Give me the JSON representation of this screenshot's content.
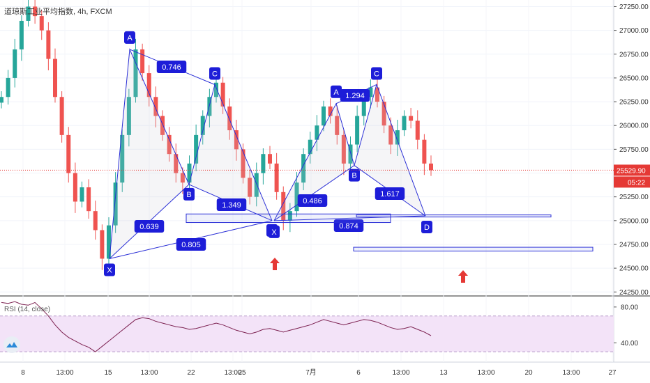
{
  "chart_data": {
    "type": "candlestick",
    "title": "道琼斯工业平均指数, 4h, FXCM",
    "symbol": "道琼斯工业平均指数",
    "interval": "4h",
    "source": "FXCM",
    "price_axis_ticks": [
      27250,
      27000,
      26750,
      26500,
      26250,
      26000,
      25750,
      25500,
      25250,
      25000,
      24750,
      24500,
      24250
    ],
    "price_axis_tick_labels": [
      "27250.00",
      "27000.00",
      "26750.00",
      "26500.00",
      "26250.00",
      "26000.00",
      "25750.00",
      "25500.00",
      "25250.00",
      "25000.00",
      "24750.00",
      "24500.00",
      "24250.00"
    ],
    "ylim": [
      24230,
      27290
    ],
    "last_price": 25529.9,
    "last_price_label": "25529.90",
    "countdown_label": "05:22",
    "time_axis_labels": [
      "8",
      "13:00",
      "15",
      "13:00",
      "22",
      "13:00",
      "25",
      "7月",
      "6",
      "13:00",
      "13",
      "13:00",
      "20",
      "13:00",
      "27"
    ],
    "ohlc_close_path": [
      [
        0,
        26300
      ],
      [
        1,
        26500
      ],
      [
        2,
        26800
      ],
      [
        3,
        27100
      ],
      [
        4,
        27250
      ],
      [
        5,
        27150
      ],
      [
        6,
        27000
      ],
      [
        7,
        26700
      ],
      [
        8,
        26300
      ],
      [
        9,
        25900
      ],
      [
        10,
        25500
      ],
      [
        11,
        25200
      ],
      [
        12,
        25350
      ],
      [
        13,
        25100
      ],
      [
        14,
        24900
      ],
      [
        15,
        24600
      ],
      [
        16,
        24950
      ],
      [
        17,
        25400
      ],
      [
        18,
        25900
      ],
      [
        19,
        26300
      ],
      [
        20,
        26800
      ],
      [
        21,
        26550
      ],
      [
        22,
        26300
      ],
      [
        23,
        26100
      ],
      [
        24,
        25900
      ],
      [
        25,
        25700
      ],
      [
        26,
        25500
      ],
      [
        27,
        25400
      ],
      [
        28,
        25600
      ],
      [
        29,
        25900
      ],
      [
        30,
        26100
      ],
      [
        31,
        26300
      ],
      [
        32,
        26450
      ],
      [
        33,
        26200
      ],
      [
        34,
        25950
      ],
      [
        35,
        25750
      ],
      [
        36,
        25450
      ],
      [
        37,
        25250
      ],
      [
        38,
        25500
      ],
      [
        39,
        25700
      ],
      [
        40,
        25600
      ],
      [
        41,
        25300
      ],
      [
        42,
        25000
      ],
      [
        43,
        25100
      ],
      [
        44,
        25400
      ],
      [
        45,
        25700
      ],
      [
        46,
        25850
      ],
      [
        47,
        26000
      ],
      [
        48,
        26200
      ],
      [
        49,
        26100
      ],
      [
        50,
        25900
      ],
      [
        51,
        25600
      ],
      [
        52,
        25800
      ],
      [
        53,
        26100
      ],
      [
        54,
        26300
      ],
      [
        55,
        26400
      ],
      [
        56,
        26250
      ],
      [
        57,
        26000
      ],
      [
        58,
        25800
      ],
      [
        59,
        25950
      ],
      [
        60,
        26100
      ],
      [
        61,
        26050
      ],
      [
        62,
        25850
      ],
      [
        63,
        25600
      ],
      [
        64,
        25530
      ]
    ],
    "patterns": [
      {
        "name": "pattern-1",
        "points": {
          "X": 24600,
          "A": 26800,
          "B": 25380,
          "C": 26430,
          "D": 25000
        },
        "ratios": [
          {
            "label": "0.746",
            "between": "XA-AB"
          },
          {
            "label": "0.639",
            "between": "XA-XB"
          },
          {
            "label": "1.349",
            "between": "BC-BD"
          },
          {
            "label": "0.805",
            "between": "XA-XD"
          }
        ]
      },
      {
        "name": "pattern-2",
        "points": {
          "X": 25000,
          "A": 26230,
          "B": 25580,
          "C": 26430,
          "D": 25050
        },
        "ratios": [
          {
            "label": "1.294",
            "between": "AB-AC"
          },
          {
            "label": "0.486",
            "between": "XA-XB"
          },
          {
            "label": "1.617",
            "between": "BC-BD"
          },
          {
            "label": "0.874",
            "between": "XA-XD"
          }
        ]
      }
    ],
    "zones": [
      {
        "name": "support-zone-1",
        "low": 24980,
        "high": 25070
      },
      {
        "name": "support-zone-2",
        "low": 25040,
        "high": 25060
      },
      {
        "name": "target-zone",
        "low": 24680,
        "high": 24720
      }
    ],
    "indicator": {
      "name": "RSI (14, close)",
      "label": "RSI (14, close)",
      "ticks": [
        80,
        40
      ],
      "tick_labels": [
        "80.00",
        "40.00"
      ],
      "upper_band": 70,
      "lower_band": 30,
      "ylim": [
        20,
        90
      ],
      "values": [
        85,
        84,
        86,
        83,
        82,
        85,
        78,
        70,
        60,
        52,
        46,
        42,
        38,
        35,
        30,
        36,
        42,
        48,
        54,
        60,
        66,
        68,
        67,
        64,
        62,
        60,
        58,
        57,
        55,
        56,
        58,
        60,
        62,
        60,
        57,
        54,
        52,
        50,
        52,
        55,
        56,
        54,
        52,
        54,
        56,
        58,
        60,
        63,
        66,
        64,
        62,
        60,
        62,
        64,
        66,
        65,
        63,
        60,
        57,
        55,
        56,
        58,
        55,
        52,
        48
      ]
    },
    "colors": {
      "up": "#26a69a",
      "down": "#ef5350",
      "pattern_line": "#2a2fd6",
      "label_bg": "#1d1dd8",
      "arrow": "#e53935",
      "price_line": "#e53935",
      "rsi_line": "#7b1f4f",
      "rsi_band": "#f3e3f8"
    }
  }
}
